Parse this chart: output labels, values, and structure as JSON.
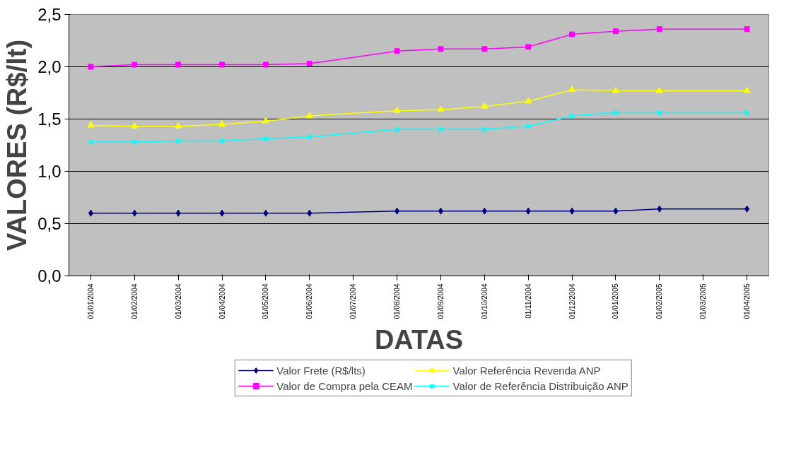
{
  "chart_data": {
    "type": "line",
    "xlabel": "DATAS",
    "ylabel": "VALORES (R$/lt)",
    "categories": [
      "01/01/2004",
      "01/02/2004",
      "01/03/2004",
      "01/04/2004",
      "01/05/2004",
      "01/06/2004",
      "01/07/2004",
      "01/08/2004",
      "01/09/2004",
      "01/10/2004",
      "01/11/2004",
      "01/12/2004",
      "01/01/2005",
      "01/02/2005",
      "01/03/2005",
      "01/04/2005"
    ],
    "series": [
      {
        "name": "Valor Frete (R$/lts)",
        "color": "#000080",
        "marker": "diamond",
        "values": [
          0.6,
          0.6,
          0.6,
          0.6,
          0.6,
          0.6,
          null,
          0.62,
          0.62,
          0.62,
          0.62,
          0.62,
          0.62,
          0.64,
          null,
          0.64
        ]
      },
      {
        "name": "Valor de Compra pela CEAM",
        "color": "#ff00ff",
        "marker": "square",
        "values": [
          2.0,
          2.02,
          2.02,
          2.02,
          2.02,
          2.03,
          null,
          2.15,
          2.17,
          2.17,
          2.19,
          2.31,
          2.34,
          2.36,
          null,
          2.36
        ]
      },
      {
        "name": "Valor Referência Revenda ANP",
        "color": "#ffff00",
        "marker": "triangle",
        "values": [
          1.44,
          1.43,
          1.43,
          1.45,
          1.48,
          1.53,
          null,
          1.58,
          1.59,
          1.62,
          1.67,
          1.78,
          1.77,
          1.77,
          null,
          1.77
        ]
      },
      {
        "name": "Valor de Referência Distribuição ANP",
        "color": "#00ffff",
        "marker": "cross",
        "values": [
          1.28,
          1.28,
          1.29,
          1.29,
          1.31,
          1.33,
          null,
          1.4,
          1.4,
          1.4,
          1.43,
          1.53,
          1.56,
          1.56,
          null,
          1.56
        ]
      }
    ],
    "ylim": [
      0,
      2.5
    ],
    "yticks": [
      {
        "value": 0,
        "label": "0,0"
      },
      {
        "value": 0.5,
        "label": "0,5"
      },
      {
        "value": 1,
        "label": "1,0"
      },
      {
        "value": 1.5,
        "label": "1,5"
      },
      {
        "value": 2,
        "label": "2,0"
      },
      {
        "value": 2.5,
        "label": "2,5"
      }
    ],
    "grid": "y",
    "legend": "bottom",
    "line_style": "solid"
  }
}
